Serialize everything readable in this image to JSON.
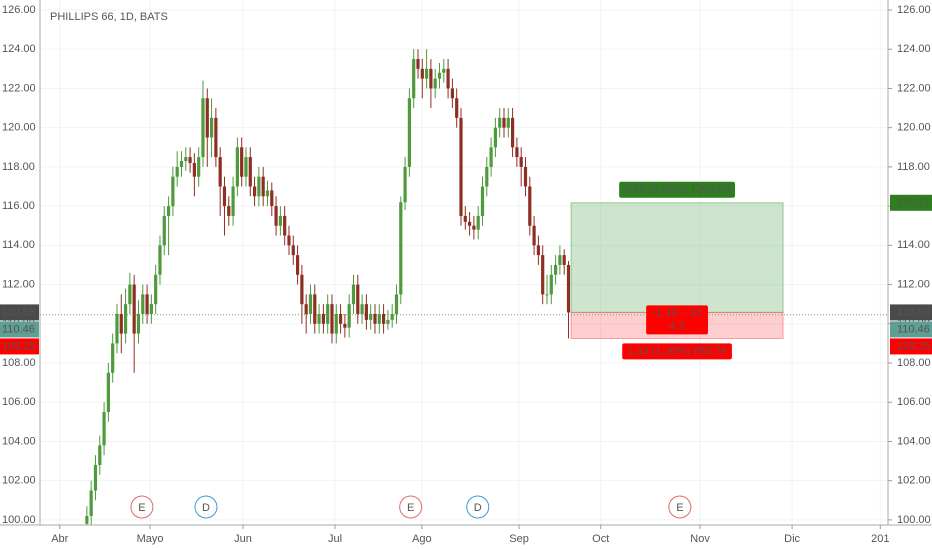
{
  "chart_data": {
    "type": "candlestick",
    "title": "PHILLIPS 66, 1D, BATS",
    "up_color": "#4e9a3c",
    "down_color": "#8e2f24",
    "open": [
      99.8,
      100.2,
      101.5,
      102.8,
      103.8,
      105.5,
      107.5,
      109,
      110.5,
      109.5,
      111,
      112,
      109.5,
      110.5,
      111.5,
      110.5,
      111,
      112.5,
      114,
      115.5,
      116,
      117.5,
      118,
      118.3,
      118.5,
      118.2,
      117.5,
      118.5,
      121.5,
      119.5,
      120.5,
      118.5,
      117,
      116,
      115.5,
      117,
      119,
      117.5,
      118.5,
      117,
      116.5,
      117.5,
      116.5,
      116.8,
      116,
      115,
      115.5,
      114.5,
      114,
      113.5,
      112.5,
      111,
      110.5,
      111.5,
      110,
      110.5,
      110,
      111,
      109.5,
      110.5,
      110,
      109.8,
      111,
      112,
      110.5,
      111,
      110.2,
      110.5,
      110,
      110.5,
      110,
      110.2,
      110.5,
      111.5,
      116.2,
      118,
      121.5,
      123.5,
      123,
      122.5,
      123,
      122,
      122.5,
      122.8,
      123,
      122,
      121.5,
      120.5,
      115.5,
      115.2,
      115,
      114.8,
      115.5,
      117,
      118,
      119,
      120,
      120.5,
      120,
      120.5,
      119,
      118.5,
      118,
      117,
      115,
      114,
      113.5,
      111.5,
      111.5,
      112.5,
      113,
      113.5,
      113
    ],
    "high": [
      100.7,
      102,
      103.3,
      104.3,
      106,
      108,
      109.5,
      111,
      111.5,
      111.8,
      112.6,
      112.5,
      111.2,
      112,
      112,
      111.5,
      113,
      114.5,
      116,
      116.5,
      118,
      118.8,
      118.8,
      119,
      119,
      118.7,
      119,
      122.4,
      122,
      121.5,
      121,
      119,
      117.5,
      116.5,
      117.5,
      119.5,
      119.5,
      119,
      119,
      117.5,
      118,
      118,
      117.3,
      117.2,
      116.5,
      116,
      116,
      115,
      114.5,
      114,
      113,
      111.5,
      112,
      112,
      111,
      111,
      111.5,
      111.5,
      111,
      111,
      110.5,
      111.5,
      112.5,
      112.5,
      111.5,
      111.5,
      111,
      111,
      111,
      111,
      110.7,
      111,
      112,
      116.5,
      118.5,
      122,
      124,
      124,
      123.5,
      124,
      123.5,
      123,
      123.3,
      123.5,
      123.5,
      122.5,
      122,
      121,
      116,
      115.7,
      115.5,
      116,
      117.5,
      118.5,
      119.5,
      120.5,
      121,
      121,
      121,
      121,
      119.5,
      119,
      118.5,
      117.5,
      115.5,
      114.5,
      114,
      112.5,
      113,
      113.5,
      114,
      113.8,
      113.2
    ],
    "low": [
      99.3,
      99.7,
      101,
      102.3,
      103.3,
      105,
      107,
      108.5,
      108.5,
      109,
      110.5,
      107.5,
      109,
      110,
      110,
      110,
      110.5,
      112,
      113.5,
      113.5,
      115.5,
      117,
      117.5,
      117.8,
      117.7,
      116.5,
      117,
      118,
      118,
      118.5,
      118,
      115.5,
      114.5,
      115,
      115,
      116.5,
      117,
      117,
      116.5,
      116,
      116,
      116,
      116,
      115.5,
      114.5,
      114.5,
      114,
      113.5,
      113,
      112,
      110,
      109.5,
      110,
      109.5,
      109.5,
      109.5,
      109.5,
      109,
      109,
      109.5,
      109.3,
      109.3,
      110.5,
      110,
      110,
      109.7,
      109.7,
      109.5,
      109.5,
      109.5,
      109.7,
      109.8,
      110,
      111,
      115.8,
      117.5,
      121,
      122.5,
      121.5,
      122,
      121,
      121.5,
      122,
      122.3,
      121.5,
      121,
      120,
      115,
      114.8,
      114.5,
      114.3,
      114.3,
      115,
      116.5,
      117.5,
      118.5,
      119.5,
      119.5,
      119.5,
      118.5,
      118,
      117,
      116.5,
      114.5,
      113.5,
      113,
      111,
      111,
      111,
      112,
      112.5,
      112.5,
      109.25
    ],
    "close": [
      100.2,
      101.5,
      102.8,
      103.8,
      105.5,
      107.5,
      109,
      110.5,
      109.5,
      111,
      112,
      109.5,
      110.5,
      111.5,
      110.5,
      111,
      112.5,
      114,
      115.5,
      116,
      117.5,
      118,
      118.3,
      118.5,
      118.2,
      117.5,
      118.5,
      121.5,
      119.5,
      120.5,
      118.5,
      117,
      116,
      115.5,
      117,
      119,
      117.5,
      118.5,
      117,
      116.5,
      117.5,
      116.5,
      116.8,
      116,
      115,
      115.5,
      114.5,
      114,
      113.5,
      112.5,
      111,
      110.5,
      111.5,
      110,
      110.5,
      110,
      111,
      109.5,
      110.5,
      110,
      109.8,
      111,
      112,
      110.5,
      111,
      110.2,
      110.5,
      110,
      110.5,
      110,
      110.2,
      110.5,
      111.5,
      116.2,
      118,
      121.5,
      123.5,
      123,
      122.5,
      123,
      122,
      122.5,
      122.8,
      123,
      122,
      121.5,
      120.5,
      115.5,
      115.2,
      115,
      114.8,
      115.5,
      117,
      118,
      119,
      120,
      120.5,
      120,
      120.5,
      119,
      118.5,
      118,
      117,
      115,
      114,
      113.5,
      111.5,
      111.5,
      112.5,
      113,
      113.5,
      113,
      110.58
    ],
    "xlim": [
      -10.9,
      186.3
    ],
    "xticks": [
      {
        "value": -6.3,
        "label": "Abr"
      },
      {
        "value": 14.7,
        "label": "Mayo"
      },
      {
        "value": 36.3,
        "label": "Jun"
      },
      {
        "value": 57.7,
        "label": "Jul"
      },
      {
        "value": 77.9,
        "label": "Ago"
      },
      {
        "value": 100.5,
        "label": "Sep"
      },
      {
        "value": 119.5,
        "label": "Oct"
      },
      {
        "value": 142.6,
        "label": "Nov"
      },
      {
        "value": 164,
        "label": "Dic"
      },
      {
        "value": 184.5,
        "label": "201"
      }
    ],
    "ylim": [
      99.74,
      126.51
    ],
    "yticks": [
      {
        "value": 100,
        "label": "100.00"
      },
      {
        "value": 102,
        "label": "102.00"
      },
      {
        "value": 104,
        "label": "104.00"
      },
      {
        "value": 106,
        "label": "106.00"
      },
      {
        "value": 108,
        "label": "108.00"
      },
      {
        "value": 110,
        "label": "110.00"
      },
      {
        "value": 112,
        "label": "112.00"
      },
      {
        "value": 114,
        "label": "114.00"
      },
      {
        "value": 116,
        "label": "116.00"
      },
      {
        "value": 118,
        "label": "118.00"
      },
      {
        "value": 120,
        "label": "120.00"
      },
      {
        "value": 122,
        "label": "122.00"
      },
      {
        "value": 124,
        "label": "124.00"
      },
      {
        "value": 126,
        "label": "126.00"
      }
    ],
    "grid": true,
    "price_labels": [
      {
        "value": 116.17,
        "color": "#2e7d1f"
      },
      {
        "value": 110.58,
        "color": "#4a4a4a"
      },
      {
        "value": 110.46,
        "color": "#5e9e94"
      },
      {
        "value": 109.25,
        "color": "#ff0000"
      }
    ],
    "position": {
      "start": 112.6,
      "end": 161.9,
      "entry": 110.58,
      "target": 116.17,
      "stop": 109.25,
      "target_label": "5.59 (5.06%) 1206.83",
      "stop_label": "1.33 (1.20%) 950.79",
      "info_lines": [
        "-1.33 ~ 37",
        "4.2"
      ]
    },
    "events": [
      {
        "x": 12.8,
        "label": "E",
        "color": "#e06a6a"
      },
      {
        "x": 27.7,
        "label": "D",
        "color": "#3a9ad9"
      },
      {
        "x": 75.3,
        "label": "E",
        "color": "#e06a6a"
      },
      {
        "x": 90.9,
        "label": "D",
        "color": "#3a9ad9"
      },
      {
        "x": 137.9,
        "label": "E",
        "color": "#e06a6a"
      }
    ]
  }
}
